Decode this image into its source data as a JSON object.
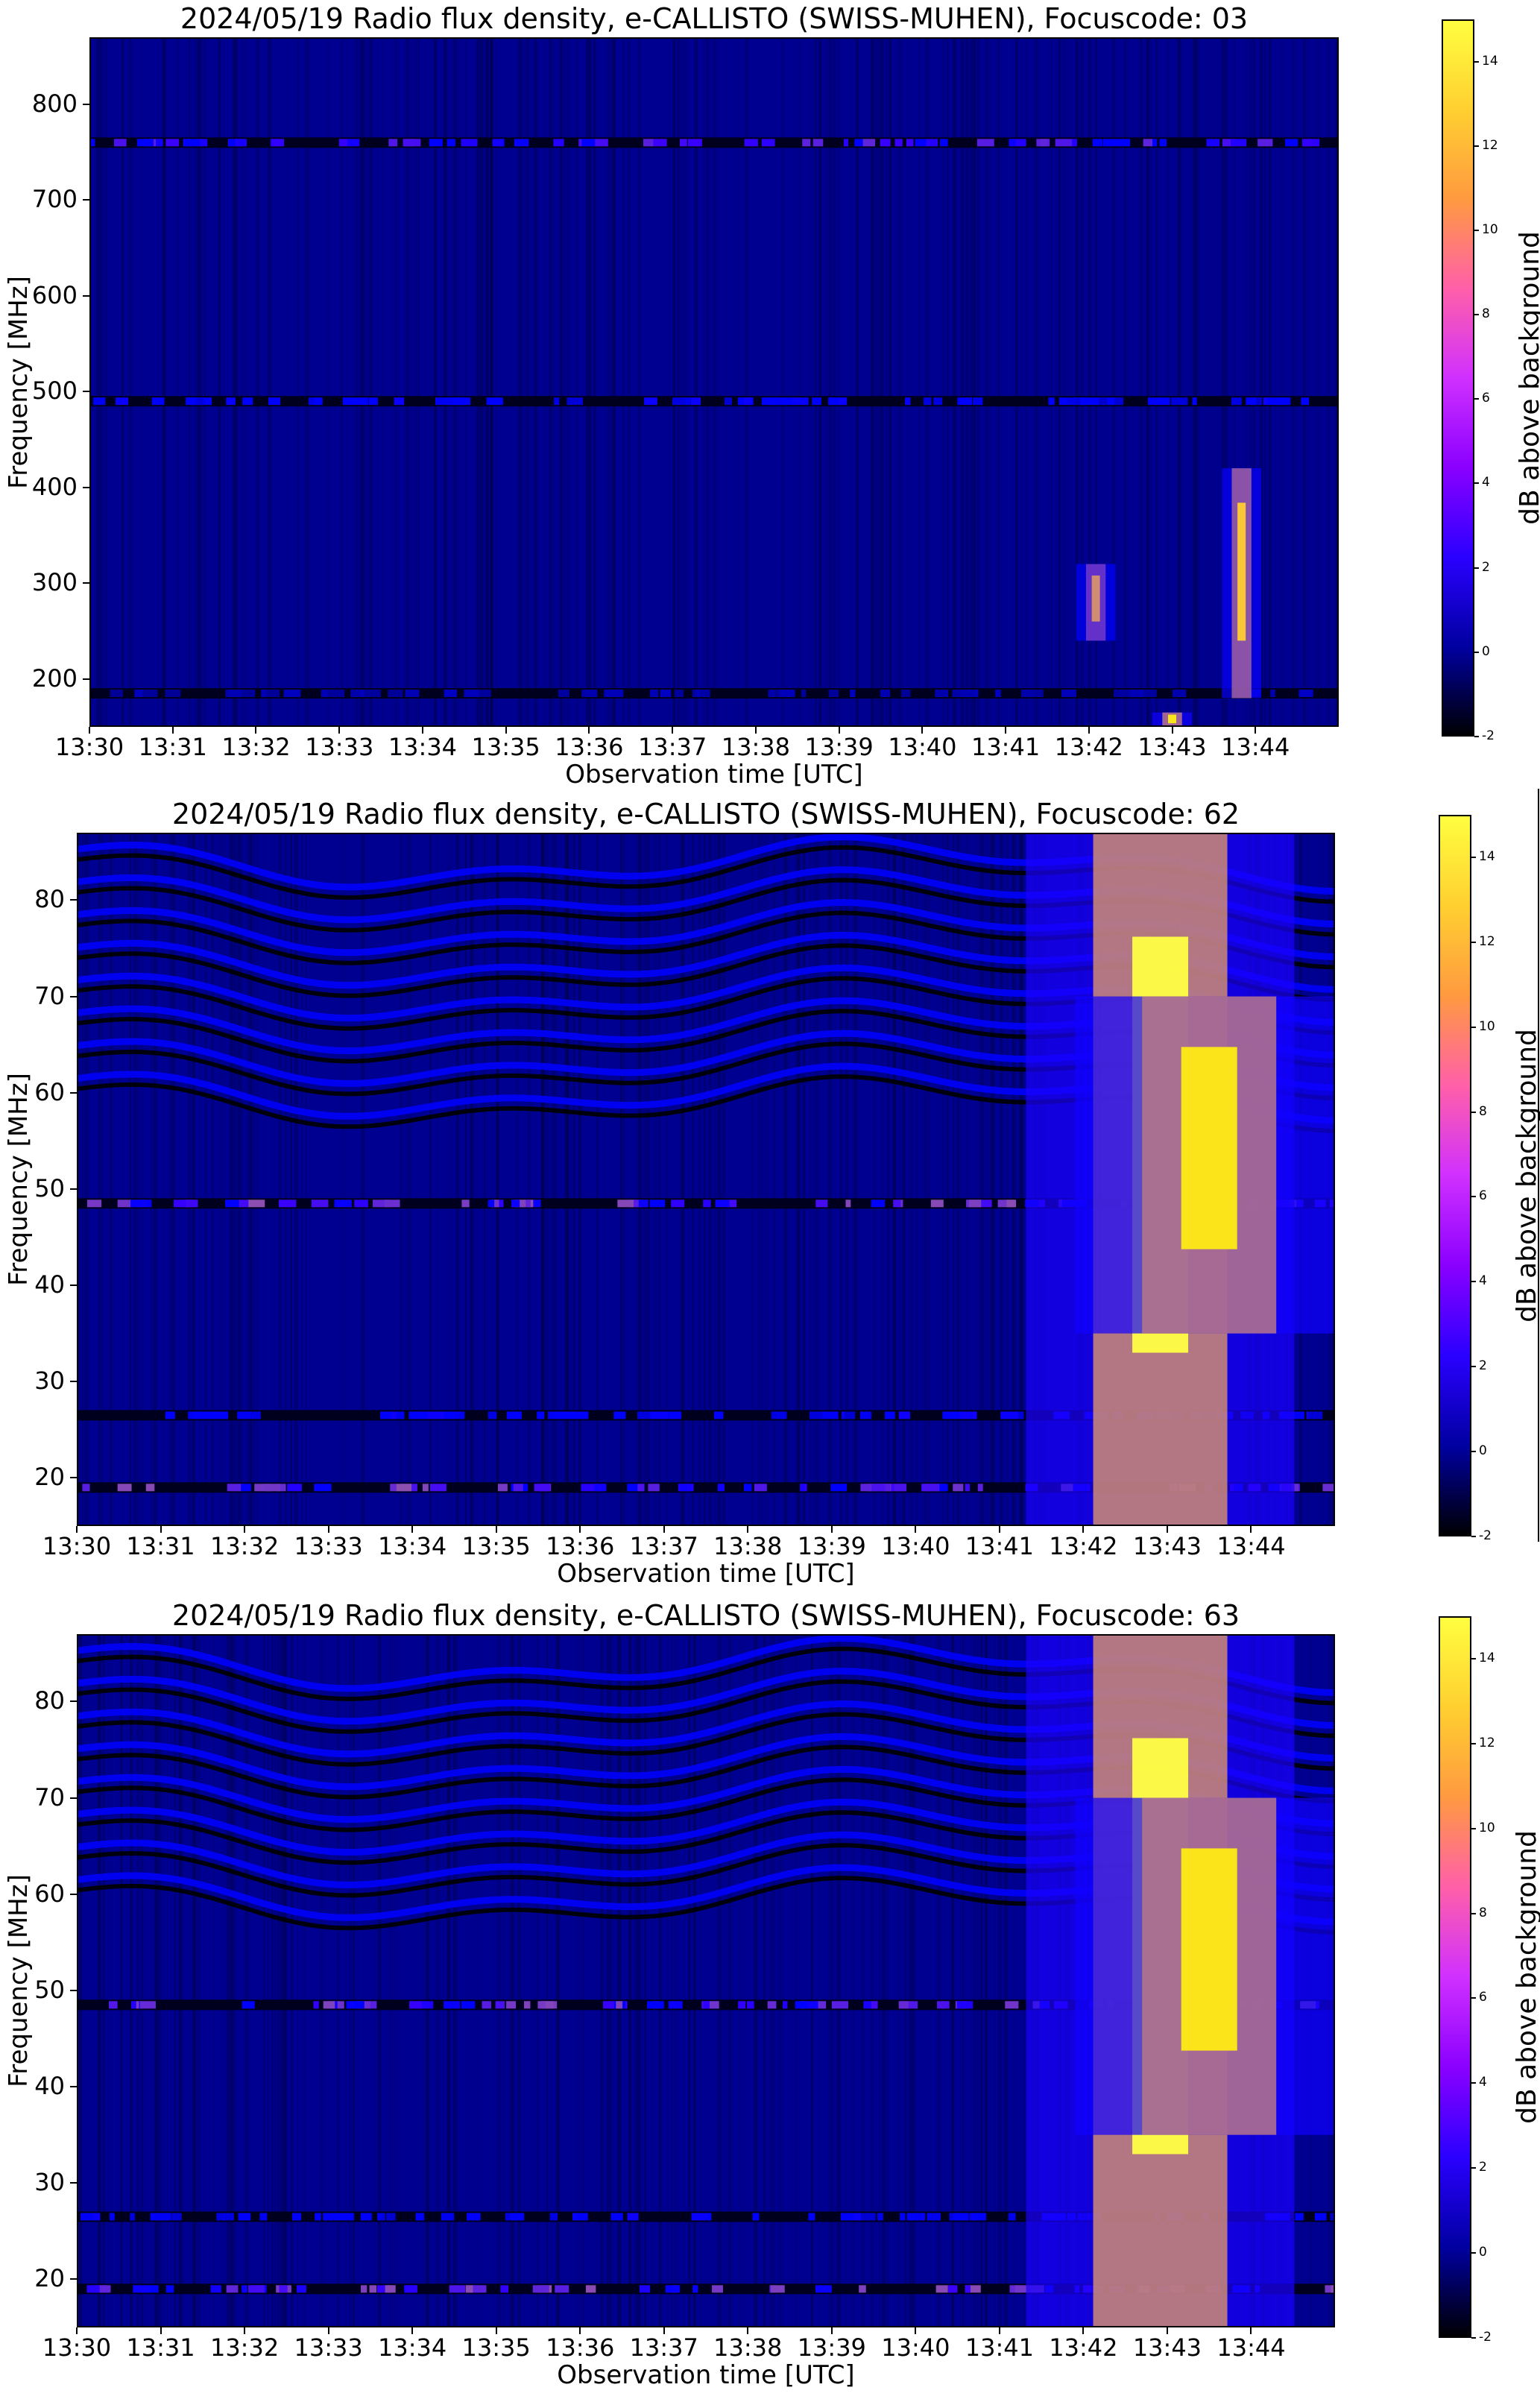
{
  "colors": {
    "colormap": "gnuplot2",
    "colorbar_stops": [
      "#000000",
      "#0000a0",
      "#2a00ff",
      "#8a00ff",
      "#d030ff",
      "#ff60a8",
      "#ff9a40",
      "#ffd030",
      "#ffff40"
    ]
  },
  "chart_data": [
    {
      "type": "heatmap",
      "title": "2024/05/19  Radio flux density, e-CALLISTO (SWISS-MUHEN), Focuscode: 03",
      "xlabel": "Observation time [UTC]",
      "ylabel": "Frequency [MHz]",
      "x_ticks": [
        "13:30",
        "13:31",
        "13:32",
        "13:33",
        "13:34",
        "13:35",
        "13:36",
        "13:37",
        "13:38",
        "13:39",
        "13:40",
        "13:41",
        "13:42",
        "13:43",
        "13:44"
      ],
      "xlim": [
        "13:30",
        "13:45"
      ],
      "y_ticks": [
        200,
        300,
        400,
        500,
        600,
        700,
        800
      ],
      "ylim": [
        150,
        870
      ],
      "colorbar": {
        "label": "dB above background",
        "range": [
          -2,
          15
        ],
        "ticks": [
          -2,
          0,
          2,
          4,
          6,
          8,
          10,
          12,
          14
        ]
      },
      "features": [
        {
          "kind": "band",
          "freq": 760,
          "level": 5
        },
        {
          "kind": "band",
          "freq": 490,
          "level": 3
        },
        {
          "kind": "band",
          "freq": 185,
          "level": 1
        },
        {
          "kind": "burst",
          "time": "13:42:05",
          "freq_range": [
            240,
            320
          ],
          "peak_db": 10
        },
        {
          "kind": "burst",
          "time": "13:43:50",
          "freq_range": [
            180,
            420
          ],
          "peak_db": 12
        },
        {
          "kind": "burst",
          "time": "13:43:00",
          "freq_range": [
            150,
            165
          ],
          "peak_db": 13
        }
      ]
    },
    {
      "type": "heatmap",
      "title": "2024/05/19  Radio flux density, e-CALLISTO (SWISS-MUHEN), Focuscode: 62",
      "xlabel": "Observation time [UTC]",
      "ylabel": "Frequency [MHz]",
      "x_ticks": [
        "13:30",
        "13:31",
        "13:32",
        "13:33",
        "13:34",
        "13:35",
        "13:36",
        "13:37",
        "13:38",
        "13:39",
        "13:40",
        "13:41",
        "13:42",
        "13:43",
        "13:44"
      ],
      "xlim": [
        "13:30",
        "13:45"
      ],
      "y_ticks": [
        20,
        30,
        40,
        50,
        60,
        70,
        80
      ],
      "ylim": [
        15,
        87
      ],
      "colorbar": {
        "label": "dB above background",
        "range": [
          -2,
          15
        ],
        "ticks": [
          -2,
          0,
          2,
          4,
          6,
          8,
          10,
          12,
          14
        ]
      },
      "features": [
        {
          "kind": "band",
          "freq": 48.5,
          "level": 6
        },
        {
          "kind": "band",
          "freq": 26.5,
          "level": 3
        },
        {
          "kind": "band",
          "freq": 19,
          "level": 6
        },
        {
          "kind": "burst",
          "time": "13:42:55",
          "freq_range": [
            15,
            87
          ],
          "peak_db": 14
        },
        {
          "kind": "burst",
          "time": "13:43:30",
          "freq_range": [
            35,
            70
          ],
          "peak_db": 13
        }
      ]
    },
    {
      "type": "heatmap",
      "title": "2024/05/19  Radio flux density, e-CALLISTO (SWISS-MUHEN), Focuscode: 63",
      "xlabel": "Observation time [UTC]",
      "ylabel": "Frequency [MHz]",
      "x_ticks": [
        "13:30",
        "13:31",
        "13:32",
        "13:33",
        "13:34",
        "13:35",
        "13:36",
        "13:37",
        "13:38",
        "13:39",
        "13:40",
        "13:41",
        "13:42",
        "13:43",
        "13:44"
      ],
      "xlim": [
        "13:30",
        "13:45"
      ],
      "y_ticks": [
        20,
        30,
        40,
        50,
        60,
        70,
        80
      ],
      "ylim": [
        15,
        87
      ],
      "colorbar": {
        "label": "dB above background",
        "range": [
          -2,
          15
        ],
        "ticks": [
          -2,
          0,
          2,
          4,
          6,
          8,
          10,
          12,
          14
        ]
      },
      "features": [
        {
          "kind": "band",
          "freq": 48.5,
          "level": 6
        },
        {
          "kind": "band",
          "freq": 26.5,
          "level": 3
        },
        {
          "kind": "band",
          "freq": 19,
          "level": 6
        },
        {
          "kind": "burst",
          "time": "13:42:55",
          "freq_range": [
            15,
            87
          ],
          "peak_db": 14
        },
        {
          "kind": "burst",
          "time": "13:43:30",
          "freq_range": [
            35,
            70
          ],
          "peak_db": 13
        }
      ]
    }
  ]
}
